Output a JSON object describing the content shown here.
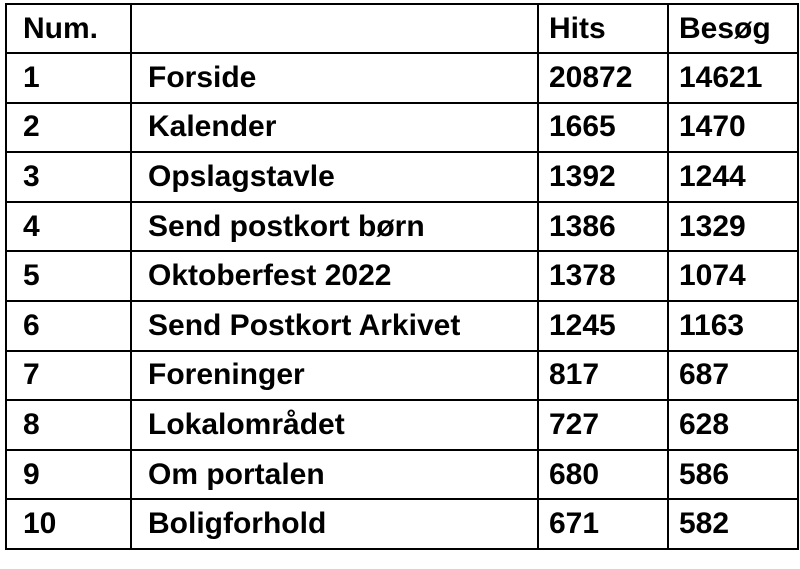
{
  "table": {
    "header": [
      "Num.",
      null,
      "Hits",
      "Besøg"
    ],
    "rows": [
      [
        1,
        "Forside",
        20872,
        14621
      ],
      [
        2,
        "Kalender",
        1665,
        1470
      ],
      [
        3,
        "Opslagstavle",
        1392,
        1244
      ],
      [
        4,
        "Send postkort børn",
        1386,
        1329
      ],
      [
        5,
        "Oktoberfest 2022",
        1378,
        1074
      ],
      [
        6,
        "Send Postkort Arkivet",
        1245,
        1163
      ],
      [
        7,
        "Foreninger",
        817,
        687
      ],
      [
        8,
        "Lokalområdet",
        727,
        628
      ],
      [
        9,
        "Om portalen",
        680,
        586
      ],
      [
        10,
        "Boligforhold",
        671,
        582
      ]
    ]
  }
}
